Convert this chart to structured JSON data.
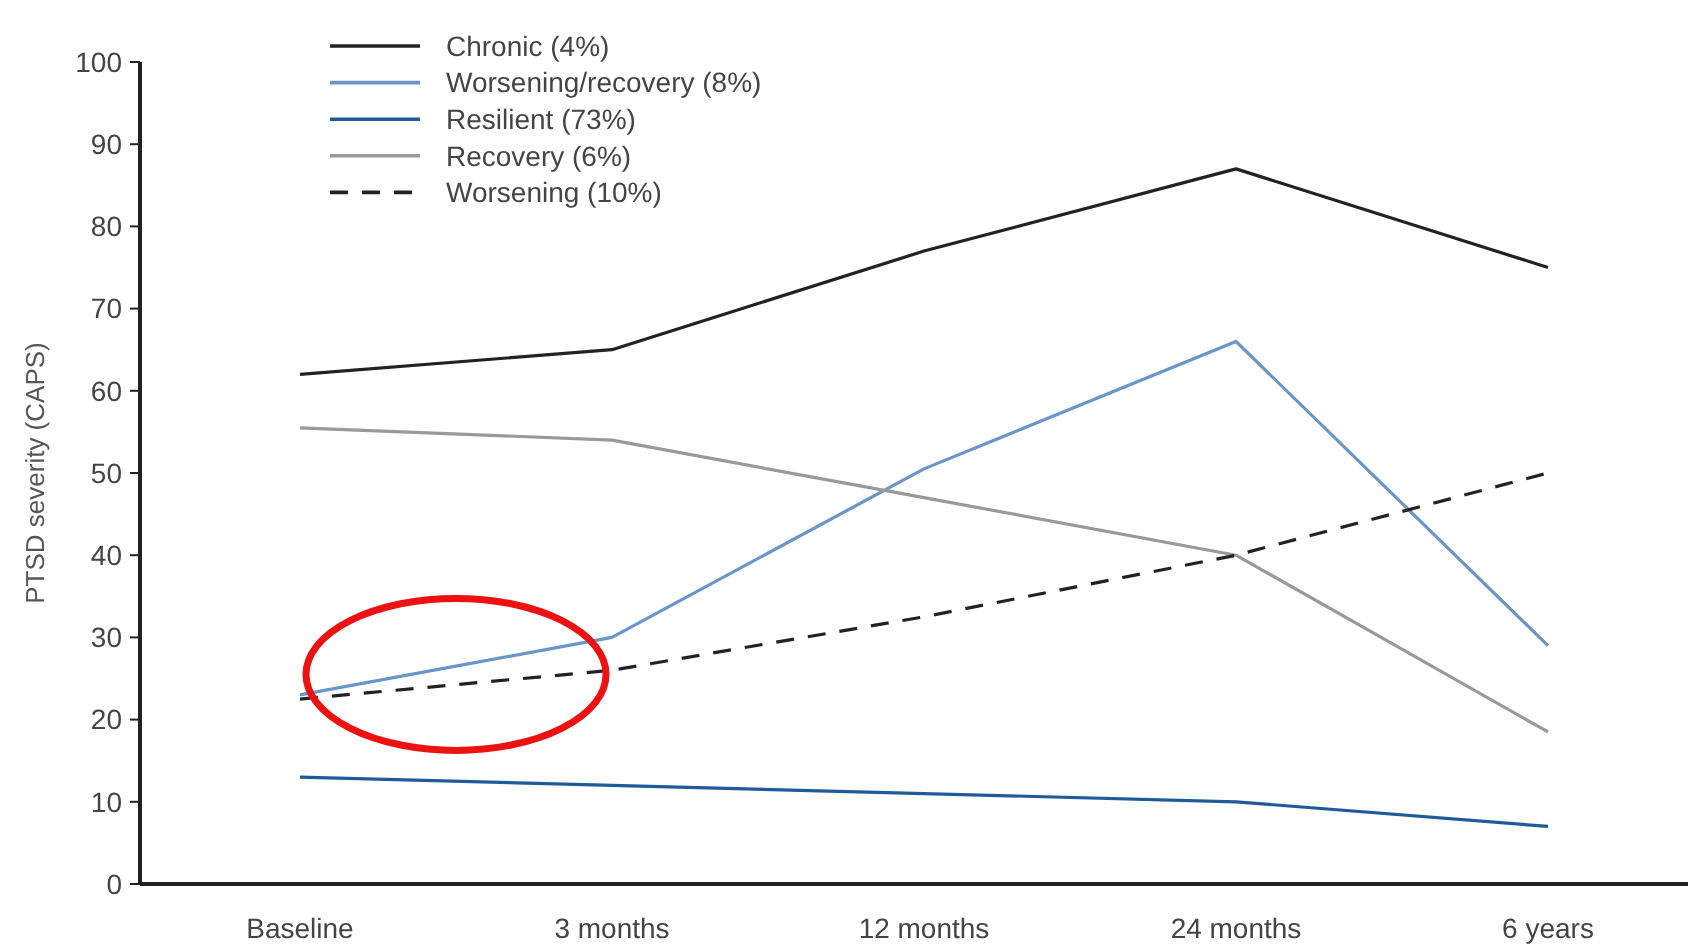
{
  "chart_data": {
    "type": "line",
    "ylabel": "PTSD severity (CAPS)",
    "categories": [
      "Baseline",
      "3 months",
      "12 months",
      "24 months",
      "6 years"
    ],
    "ylim": [
      0,
      100
    ],
    "yticks": [
      0,
      10,
      20,
      30,
      40,
      50,
      60,
      70,
      80,
      90,
      100
    ],
    "grid": false,
    "legend": "top",
    "marker": "none",
    "series": [
      {
        "name": "Chronic (4%)",
        "color": "#222222",
        "values": [
          62,
          65,
          77,
          87,
          75
        ]
      },
      {
        "name": "Worsening/recovery (8%)",
        "color": "#6a95c8",
        "values": [
          23,
          30,
          50.5,
          66,
          29
        ]
      },
      {
        "name": "Resilient (73%)",
        "color": "#1f5a99",
        "values": [
          13,
          12,
          11,
          10,
          7
        ]
      },
      {
        "name": "Recovery (6%)",
        "color": "#999999",
        "values": [
          55.5,
          54,
          47,
          40,
          18.5
        ]
      },
      {
        "name": "Worsening (10%)",
        "color": "#222222",
        "line_style": "dashed",
        "values": [
          22.5,
          26,
          32.5,
          40,
          50
        ]
      }
    ]
  }
}
